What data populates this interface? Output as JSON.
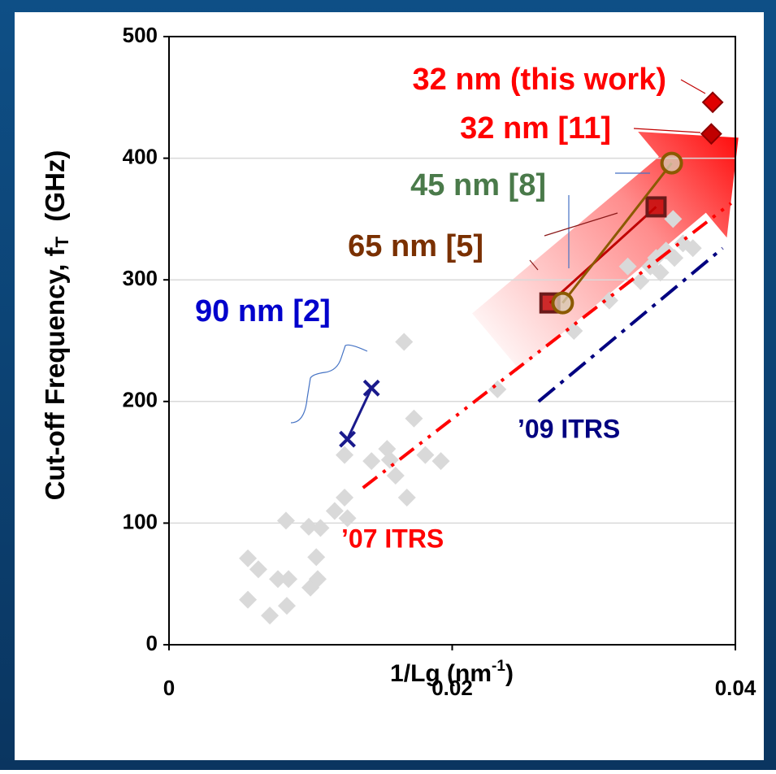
{
  "chart_data": {
    "type": "scatter",
    "ylabel": [
      "Cut-off Frequency, f",
      "T",
      "  (GHz)"
    ],
    "xlabel": [
      "1/Lg (nm",
      "-1",
      ")"
    ],
    "xlim": [
      0,
      0.04
    ],
    "xticks": [
      0,
      0.02,
      0.04
    ],
    "ylim": [
      0,
      500
    ],
    "yticks": [
      0,
      100,
      200,
      300,
      400,
      500
    ],
    "grid": true,
    "series": [
      {
        "color": "#d9d9d9",
        "marker": "diamond",
        "x": [
          0.00557,
          0.00631,
          0.00557,
          0.00712,
          0.00769,
          0.00832,
          0.00826,
          0.00844,
          0.00987,
          0.0104,
          0.00999,
          0.0105,
          0.0107,
          0.0117,
          0.0124,
          0.0126,
          0.0124,
          0.0143,
          0.0154,
          0.0156,
          0.016,
          0.0166,
          0.0168,
          0.0173,
          0.0181,
          0.0192,
          0.0232,
          0.0286,
          0.0311,
          0.0324,
          0.0333,
          0.034,
          0.0344,
          0.0351,
          0.0357,
          0.0356,
          0.0363,
          0.037,
          0.0347
        ],
        "values": [
          71,
          62,
          37,
          24,
          54,
          32,
          102,
          54,
          97,
          72,
          47,
          54,
          96,
          110,
          121,
          104,
          156,
          151,
          161,
          152,
          139,
          249,
          121,
          186,
          156,
          151,
          210,
          258,
          283,
          311,
          299,
          311,
          318,
          324,
          318,
          350,
          330,
          326,
          306
        ]
      },
      {
        "name": "’07 ITRS",
        "color": "#ff0000",
        "marker": "none",
        "dash": "22,9,4,9,4,9",
        "x": [
          0.0137,
          0.0397
        ],
        "values": [
          129,
          363
        ]
      },
      {
        "name": "’09 ITRS",
        "color": "#000080",
        "marker": "none",
        "dash": "26,9,5,9",
        "x": [
          0.0261,
          0.0391
        ],
        "values": [
          200,
          326
        ]
      },
      {
        "name": "90 nm [2]",
        "color": "#1a1a8c",
        "label_color": "#0000cc",
        "marker": "x",
        "x": [
          0.0126,
          0.0143
        ],
        "values": [
          169,
          211
        ]
      },
      {
        "name": "65 nm [5]",
        "color": "#c00000",
        "label_color": "#7a3000",
        "marker": "square",
        "x": [
          0.0269,
          0.0344
        ],
        "values": [
          281,
          360
        ]
      },
      {
        "name": "45 nm [8]",
        "color": "#8b5a00",
        "label_color": "#4a7a4a",
        "marker": "circle",
        "x": [
          0.0278,
          0.0355
        ],
        "values": [
          281,
          396
        ]
      },
      {
        "name": "32 nm [11]",
        "color": "#c00000",
        "label_color": "#ff0000",
        "marker": "diamond",
        "x": [
          0.0383
        ],
        "values": [
          420
        ]
      },
      {
        "name": "32 nm (this work)",
        "color": "#e00000",
        "label_color": "#ff0000",
        "marker": "diamond",
        "x": [
          0.0384
        ],
        "values": [
          446
        ]
      }
    ]
  }
}
